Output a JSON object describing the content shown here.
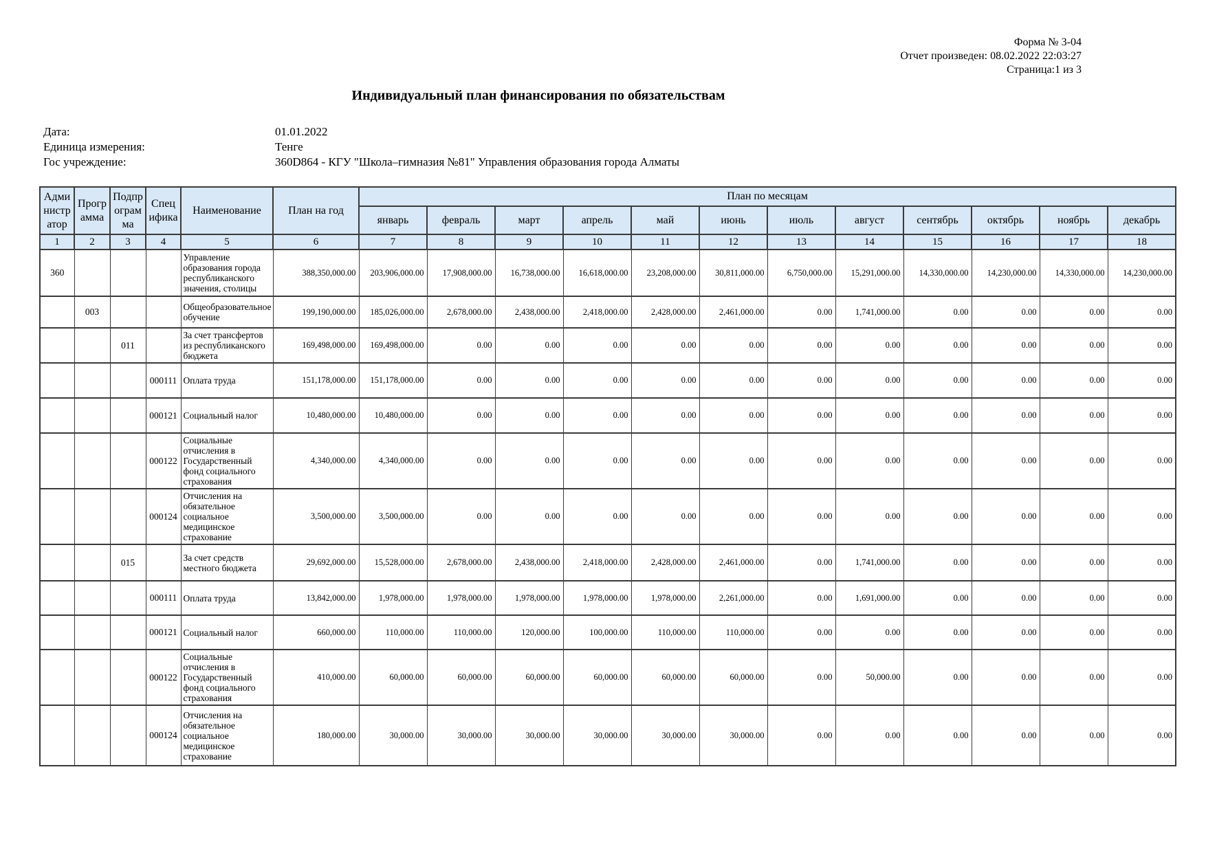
{
  "page": {
    "form_no": "Форма № 3-04",
    "generated": "Отчет произведен: 08.02.2022 22:03:27",
    "page_info": "Страница:1 из 3",
    "title": "Индивидуальный план финансирования по обязательствам"
  },
  "info": {
    "rows": [
      {
        "label": "Дата:",
        "value": "01.01.2022"
      },
      {
        "label": "Единица измерения:",
        "value": "Тенге"
      },
      {
        "label": "Гос учреждение:",
        "value": "360D864 - КГУ \"Школа–гимназия №81\" Управления образования города Алматы"
      }
    ]
  },
  "table": {
    "col_headers": [
      "Администратор",
      "Программа",
      "Подпрограмма",
      "Специфика",
      "Наименование",
      "План на год"
    ],
    "months_group_label": "План по месяцам",
    "months": [
      "январь",
      "февраль",
      "март",
      "апрель",
      "май",
      "июнь",
      "июль",
      "август",
      "сентябрь",
      "октябрь",
      "ноябрь",
      "декабрь"
    ],
    "col_numbers": [
      "1",
      "2",
      "3",
      "4",
      "5",
      "6",
      "7",
      "8",
      "9",
      "10",
      "11",
      "12",
      "13",
      "14",
      "15",
      "16",
      "17",
      "18"
    ],
    "rows": [
      {
        "admin": "360",
        "prog": "",
        "subprog": "",
        "spec": "",
        "name": "Управление образования города республиканского значения, столицы",
        "plan_year": "388,350,000.00",
        "months": [
          "203,906,000.00",
          "17,908,000.00",
          "16,738,000.00",
          "16,618,000.00",
          "23,208,000.00",
          "30,811,000.00",
          "6,750,000.00",
          "15,291,000.00",
          "14,330,000.00",
          "14,230,000.00",
          "14,330,000.00",
          "14,230,000.00"
        ]
      },
      {
        "admin": "",
        "prog": "003",
        "subprog": "",
        "spec": "",
        "name": "Общеобразовательное обучение",
        "plan_year": "199,190,000.00",
        "months": [
          "185,026,000.00",
          "2,678,000.00",
          "2,438,000.00",
          "2,418,000.00",
          "2,428,000.00",
          "2,461,000.00",
          "0.00",
          "1,741,000.00",
          "0.00",
          "0.00",
          "0.00",
          "0.00"
        ]
      },
      {
        "admin": "",
        "prog": "",
        "subprog": "011",
        "spec": "",
        "name": "За счет трансфертов из республиканского бюджета",
        "plan_year": "169,498,000.00",
        "months": [
          "169,498,000.00",
          "0.00",
          "0.00",
          "0.00",
          "0.00",
          "0.00",
          "0.00",
          "0.00",
          "0.00",
          "0.00",
          "0.00",
          "0.00"
        ]
      },
      {
        "admin": "",
        "prog": "",
        "subprog": "",
        "spec": "000111",
        "name": "Оплата труда",
        "plan_year": "151,178,000.00",
        "months": [
          "151,178,000.00",
          "0.00",
          "0.00",
          "0.00",
          "0.00",
          "0.00",
          "0.00",
          "0.00",
          "0.00",
          "0.00",
          "0.00",
          "0.00"
        ]
      },
      {
        "admin": "",
        "prog": "",
        "subprog": "",
        "spec": "000121",
        "name": "Социальный налог",
        "plan_year": "10,480,000.00",
        "months": [
          "10,480,000.00",
          "0.00",
          "0.00",
          "0.00",
          "0.00",
          "0.00",
          "0.00",
          "0.00",
          "0.00",
          "0.00",
          "0.00",
          "0.00"
        ]
      },
      {
        "admin": "",
        "prog": "",
        "subprog": "",
        "spec": "000122",
        "name": "Социальные отчисления в Государственный фонд социального страхования",
        "plan_year": "4,340,000.00",
        "months": [
          "4,340,000.00",
          "0.00",
          "0.00",
          "0.00",
          "0.00",
          "0.00",
          "0.00",
          "0.00",
          "0.00",
          "0.00",
          "0.00",
          "0.00"
        ]
      },
      {
        "admin": "",
        "prog": "",
        "subprog": "",
        "spec": "000124",
        "name": "Отчисления на обязательное социальное медицинское страхование",
        "plan_year": "3,500,000.00",
        "months": [
          "3,500,000.00",
          "0.00",
          "0.00",
          "0.00",
          "0.00",
          "0.00",
          "0.00",
          "0.00",
          "0.00",
          "0.00",
          "0.00",
          "0.00"
        ]
      },
      {
        "admin": "",
        "prog": "",
        "subprog": "015",
        "spec": "",
        "name": "За счет средств местного бюджета",
        "plan_year": "29,692,000.00",
        "months": [
          "15,528,000.00",
          "2,678,000.00",
          "2,438,000.00",
          "2,418,000.00",
          "2,428,000.00",
          "2,461,000.00",
          "0.00",
          "1,741,000.00",
          "0.00",
          "0.00",
          "0.00",
          "0.00"
        ]
      },
      {
        "admin": "",
        "prog": "",
        "subprog": "",
        "spec": "000111",
        "name": "Оплата труда",
        "plan_year": "13,842,000.00",
        "months": [
          "1,978,000.00",
          "1,978,000.00",
          "1,978,000.00",
          "1,978,000.00",
          "1,978,000.00",
          "2,261,000.00",
          "0.00",
          "1,691,000.00",
          "0.00",
          "0.00",
          "0.00",
          "0.00"
        ]
      },
      {
        "admin": "",
        "prog": "",
        "subprog": "",
        "spec": "000121",
        "name": "Социальный налог",
        "plan_year": "660,000.00",
        "months": [
          "110,000.00",
          "110,000.00",
          "120,000.00",
          "100,000.00",
          "110,000.00",
          "110,000.00",
          "0.00",
          "0.00",
          "0.00",
          "0.00",
          "0.00",
          "0.00"
        ]
      },
      {
        "admin": "",
        "prog": "",
        "subprog": "",
        "spec": "000122",
        "name": "Социальные отчисления в Государственный фонд социального страхования",
        "plan_year": "410,000.00",
        "months": [
          "60,000.00",
          "60,000.00",
          "60,000.00",
          "60,000.00",
          "60,000.00",
          "60,000.00",
          "0.00",
          "50,000.00",
          "0.00",
          "0.00",
          "0.00",
          "0.00"
        ]
      },
      {
        "admin": "",
        "prog": "",
        "subprog": "",
        "spec": "000124",
        "name": "Отчисления на обязательное социальное медицинское страхование",
        "plan_year": "180,000.00",
        "months": [
          "30,000.00",
          "30,000.00",
          "30,000.00",
          "30,000.00",
          "30,000.00",
          "30,000.00",
          "0.00",
          "0.00",
          "0.00",
          "0.00",
          "0.00",
          "0.00"
        ]
      }
    ]
  },
  "colors": {
    "header_bg": "#d9e8f6",
    "border": "#3a3a3a"
  }
}
